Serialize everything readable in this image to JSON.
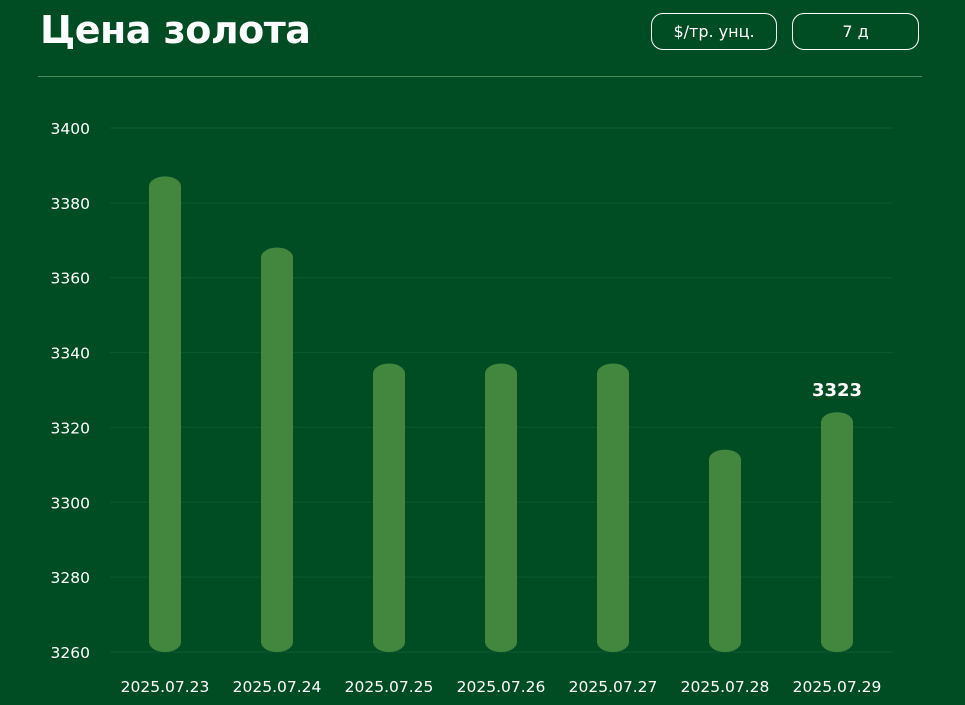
{
  "header": {
    "title": "Цена золота",
    "unit_button": "$/тр. унц.",
    "range_button": "7 д"
  },
  "colors": {
    "background": "#004d24",
    "bar": "#43873f",
    "text": "#ffffff",
    "grid": "#0b5a2c"
  },
  "chart_data": {
    "type": "bar",
    "title": "Цена золота",
    "xlabel": "",
    "ylabel": "",
    "categories": [
      "2025.07.23",
      "2025.07.24",
      "2025.07.25",
      "2025.07.26",
      "2025.07.27",
      "2025.07.28",
      "2025.07.29"
    ],
    "values": [
      3386,
      3367,
      3336,
      3336,
      3336,
      3313,
      3323
    ],
    "ylim": [
      3260,
      3400
    ],
    "yticks": [
      3260,
      3280,
      3300,
      3320,
      3340,
      3360,
      3380,
      3400
    ],
    "annotations": [
      {
        "category": "2025.07.29",
        "text": "3323"
      }
    ],
    "grid": true,
    "legend": "none"
  }
}
